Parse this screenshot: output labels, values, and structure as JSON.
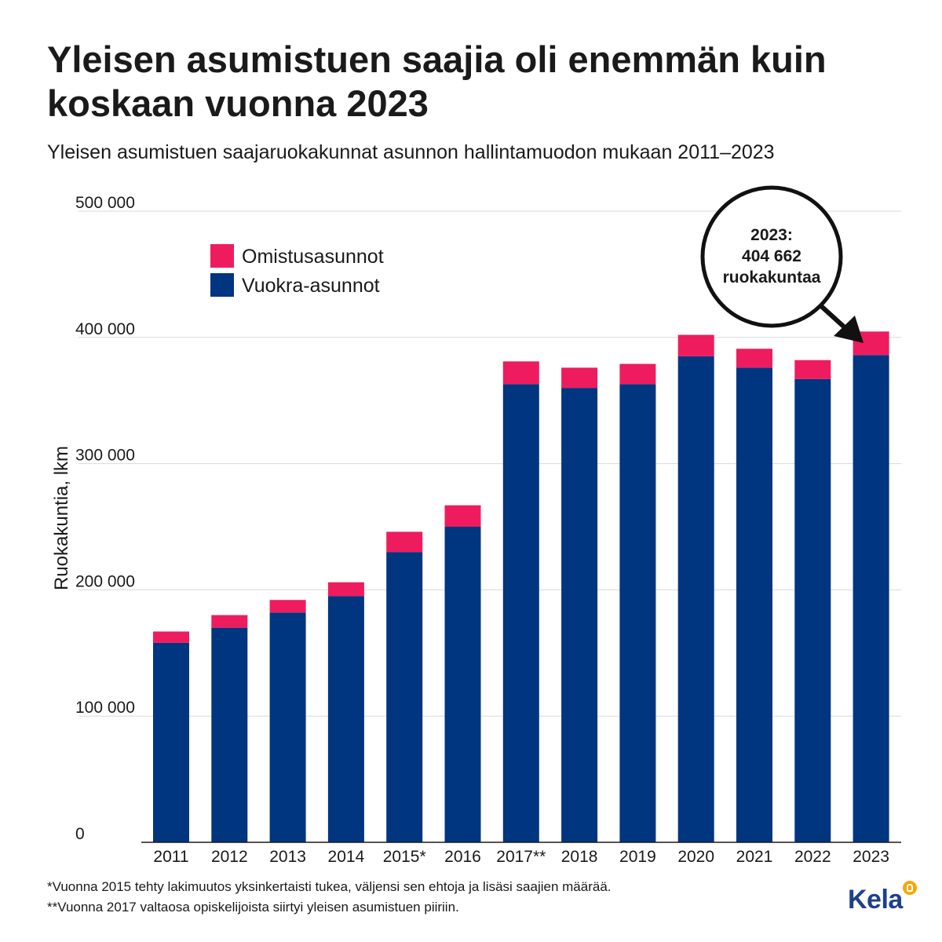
{
  "title": "Yleisen asumistuen saajia oli enemmän kuin koskaan vuonna 2023",
  "subtitle": "Yleisen asumistuen saajaruokakunnat asunnon hallintamuodon mukaan 2011–2023",
  "chart_data": {
    "type": "bar",
    "stacked": true,
    "categories": [
      "2011",
      "2012",
      "2013",
      "2014",
      "2015*",
      "2016",
      "2017**",
      "2018",
      "2019",
      "2020",
      "2021",
      "2022",
      "2023"
    ],
    "series": [
      {
        "name": "Vuokra-asunnot",
        "color": "#003580",
        "values": [
          158000,
          170000,
          182000,
          195000,
          230000,
          250000,
          363000,
          360000,
          363000,
          385000,
          376000,
          367000,
          386000
        ]
      },
      {
        "name": "Omistusasunnot",
        "color": "#ee1c5f",
        "values": [
          9000,
          10000,
          10000,
          11000,
          16000,
          17000,
          18000,
          16000,
          16000,
          17000,
          15000,
          15000,
          18662
        ]
      }
    ],
    "ylabel": "Ruokakuntia, lkm",
    "xlabel": "",
    "ylim": [
      0,
      500000
    ],
    "yticks": [
      "0",
      "100 000",
      "200 000",
      "300 000",
      "400 000",
      "500 000"
    ],
    "ytick_values": [
      0,
      100000,
      200000,
      300000,
      400000,
      500000
    ],
    "grid": true,
    "legend_position": "top-left",
    "annotation": {
      "lines": [
        "2023:",
        "404 662",
        "ruokakuntaa"
      ],
      "points_to": "2023"
    }
  },
  "footnotes": [
    "*Vuonna 2015 tehty lakimuutos yksinkertaisti tukea, väljensi sen ehtoja ja lisäsi saajien määrää.",
    "**Vuonna 2017 valtaosa opiskelijoista siirtyi yleisen asumistuen piiriin."
  ],
  "logo": {
    "text": "Kela",
    "accent_color": "#f5a800"
  }
}
